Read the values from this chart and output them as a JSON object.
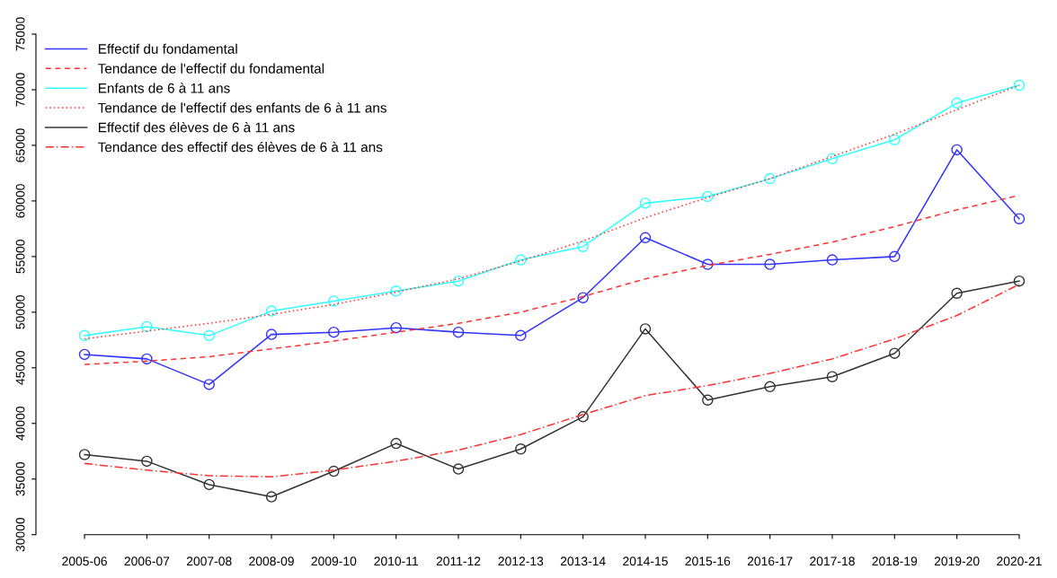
{
  "chart_data": {
    "type": "line",
    "categories": [
      "2005-06",
      "2006-07",
      "2007-08",
      "2008-09",
      "2009-10",
      "2010-11",
      "2011-12",
      "2012-13",
      "2013-14",
      "2014-15",
      "2015-16",
      "2016-17",
      "2017-18",
      "2018-19",
      "2019-20",
      "2020-21"
    ],
    "series": [
      {
        "name": "Effectif du fondamental",
        "color": "#3333ff",
        "marker": "circle",
        "line_style": "solid",
        "values": [
          46200,
          45800,
          43500,
          48000,
          48200,
          48600,
          48200,
          47900,
          51300,
          56700,
          54300,
          54300,
          54700,
          55000,
          64600,
          58400
        ]
      },
      {
        "name": "Tendance de l'effectif du fondamental",
        "color": "#ff3333",
        "marker": "none",
        "line_style": "dashed",
        "values": [
          45300,
          45600,
          46000,
          46700,
          47400,
          48200,
          49000,
          50000,
          51400,
          53000,
          54200,
          55200,
          56300,
          57700,
          59200,
          60500
        ]
      },
      {
        "name": "Enfants de 6 à 11 ans",
        "color": "#33ffff",
        "marker": "circle",
        "line_style": "solid",
        "values": [
          47900,
          48700,
          47900,
          50100,
          51000,
          51900,
          52800,
          54700,
          55900,
          59800,
          60400,
          62000,
          63800,
          65500,
          68800,
          70400
        ]
      },
      {
        "name": "Tendance de l'effectif des enfants de 6 à 11 ans",
        "color": "#ff3333",
        "marker": "none",
        "line_style": "dotted",
        "values": [
          47600,
          48300,
          49000,
          49800,
          50700,
          51800,
          53000,
          54600,
          56400,
          58500,
          60300,
          62000,
          64000,
          66000,
          68200,
          70400
        ]
      },
      {
        "name": "Effectif des élèves de 6 à 11 ans",
        "color": "#333333",
        "marker": "circle",
        "line_style": "solid",
        "values": [
          37200,
          36600,
          34500,
          33400,
          35700,
          38200,
          35900,
          37700,
          40600,
          48500,
          42100,
          43300,
          44200,
          46300,
          51700,
          52800
        ]
      },
      {
        "name": "Tendance des effectif des élèves de 6 à 11 ans",
        "color": "#ff3333",
        "marker": "none",
        "line_style": "dashdot",
        "values": [
          36400,
          35800,
          35300,
          35200,
          35800,
          36600,
          37600,
          39000,
          40800,
          42500,
          43400,
          44500,
          45800,
          47600,
          49700,
          52500
        ]
      }
    ],
    "ylim": [
      30000,
      75000
    ],
    "yticks": [
      30000,
      35000,
      40000,
      45000,
      50000,
      55000,
      60000,
      65000,
      70000,
      75000
    ],
    "grid": false,
    "legend": "top left"
  }
}
